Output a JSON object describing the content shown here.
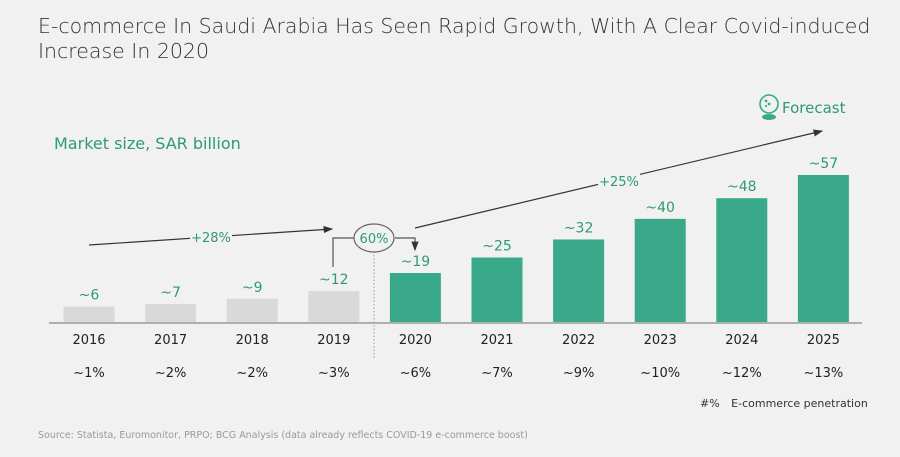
{
  "title": "E-commerce In Saudi Arabia Has Seen Rapid Growth, With A Clear Covid-induced Increase In 2020",
  "forecast_label": "Forecast",
  "legend": {
    "key": "#%",
    "label": "E-commerce penetration"
  },
  "source": "Source: Statista, Euromonitor, PRPO; BCG Analysis (data already reflects COVID-19 e-commerce boost)",
  "colors": {
    "historical": "#d9d9d9",
    "forecast": "#3aa98a",
    "accent_text": "#2e9a74"
  },
  "chart_data": {
    "type": "bar",
    "title": "E-commerce In Saudi Arabia Has Seen Rapid Growth, With A Clear Covid-induced Increase In 2020",
    "ylabel": "Market size, SAR billion",
    "xlabel": "",
    "categories": [
      "2016",
      "2017",
      "2018",
      "2019",
      "2020",
      "2021",
      "2022",
      "2023",
      "2024",
      "2025"
    ],
    "values": [
      6,
      7,
      9,
      12,
      19,
      25,
      32,
      40,
      48,
      57
    ],
    "value_labels": [
      "~6",
      "~7",
      "~9",
      "~12",
      "~19",
      "~25",
      "~32",
      "~40",
      "~48",
      "~57"
    ],
    "series_type": [
      "historical",
      "historical",
      "historical",
      "historical",
      "forecast",
      "forecast",
      "forecast",
      "forecast",
      "forecast",
      "forecast"
    ],
    "penetration": [
      "~1%",
      "~2%",
      "~2%",
      "~3%",
      "~6%",
      "~7%",
      "~9%",
      "~10%",
      "~12%",
      "~13%"
    ],
    "annotations": {
      "cagr_2016_2019": "+28%",
      "growth_2019_2020": "60%",
      "cagr_2020_2025": "+25%"
    },
    "ylim": [
      0,
      60
    ],
    "grid": false
  }
}
